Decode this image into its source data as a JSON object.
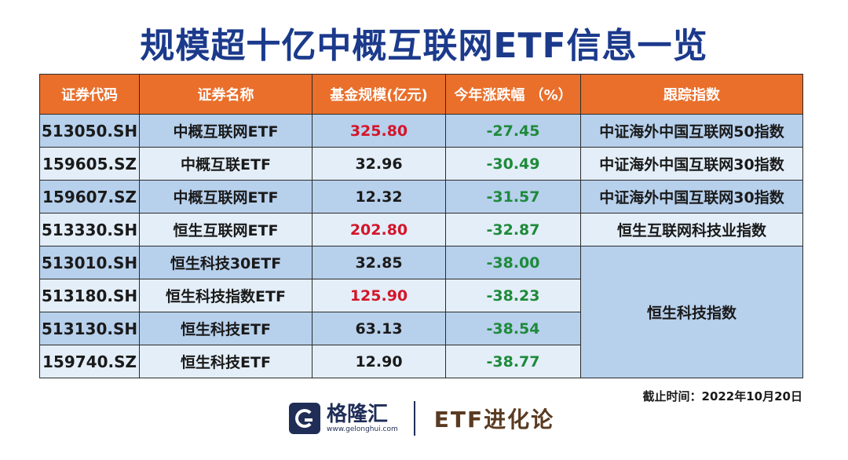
{
  "title": "规模超十亿中概互联网ETF信息一览",
  "headers": [
    "证券代码",
    "证券名称",
    "基金规模(亿元)",
    "今年涨跌幅 （%）",
    "跟踪指数"
  ],
  "rows": [
    {
      "code": "513050.SH",
      "name": "中概互联网ETF",
      "size": "325.80",
      "change": "-27.45",
      "index": "中证海外中国互联网50指数"
    },
    {
      "code": "159605.SZ",
      "name": "中概互联ETF",
      "size": "32.96",
      "change": "-30.49",
      "index": "中证海外中国互联网30指数"
    },
    {
      "code": "159607.SZ",
      "name": "中概互联网ETF",
      "size": "12.32",
      "change": "-31.57",
      "index": "中证海外中国互联网30指数"
    },
    {
      "code": "513330.SH",
      "name": "恒生互联网ETF",
      "size": "202.80",
      "change": "-32.87",
      "index": "恒生互联网科技业指数"
    },
    {
      "code": "513010.SH",
      "name": "恒生科技30ETF",
      "size": "32.85",
      "change": "-38.00"
    },
    {
      "code": "513180.SH",
      "name": "恒生科技指数ETF",
      "size": "125.90",
      "change": "-38.23"
    },
    {
      "code": "513130.SH",
      "name": "恒生科技ETF",
      "size": "63.13",
      "change": "-38.54"
    },
    {
      "code": "159740.SZ",
      "name": "恒生科技ETF",
      "size": "12.90",
      "change": "-38.77"
    }
  ],
  "merged_index": "恒生科技指数",
  "footer_note": "截止时间：2022年10月20日",
  "brand": {
    "name": "格隆汇",
    "url": "www.gelonghui.com",
    "slogan": "ETF进化论"
  },
  "colors": {
    "header_bg": "#e96f2b",
    "row_shade": "#b7d0ec",
    "row_light": "#e3eef8",
    "red_value": "#d3152a",
    "green_value": "#1e8a3a",
    "title": "#1b3a8c"
  },
  "icons": {
    "logo": "gelonghui-logo-icon"
  }
}
